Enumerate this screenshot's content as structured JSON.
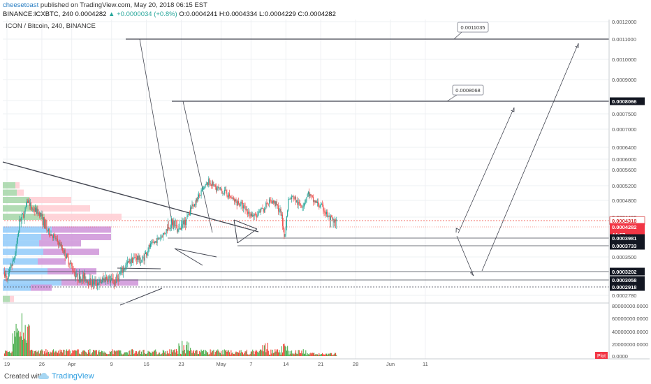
{
  "header": {
    "username": "cheesetoast",
    "published_text": "published on TradingView.com, May 20, 2018 06:15 EST",
    "ticker_line": "BINANCE:ICXBTC, 240",
    "price_last": "0.0004282",
    "change_arrow": "▲",
    "change_text": "+0.0000034 (+0.8%)",
    "ohlc": "O:0.0004241 H:0.0004334 L:0.0004229 C:0.0004282"
  },
  "chart_title": "ICON / Bitcoin, 240, BINANCE",
  "footer": {
    "created_with": "Created with",
    "brand": "TradingView"
  },
  "colors": {
    "bull": "#26a69a",
    "bear": "#ef5350",
    "volume_bull": "#4caf50",
    "volume_bear": "#f44336",
    "drawing": "#434651",
    "grid": "#eef0f3",
    "price_tag": "#f23645"
  },
  "chart_data": {
    "type": "candlestick",
    "symbol": "ICON / Bitcoin",
    "interval": "240",
    "exchange": "BINANCE",
    "x_tick_labels": [
      "19",
      "26",
      "Apr",
      "9",
      "16",
      "23",
      "May",
      "7",
      "14",
      "21",
      "28",
      "Jun",
      "11"
    ],
    "price_axis": {
      "tick_labels": [
        "0.0012000",
        "0.0011000",
        "0.0010000",
        "0.0009000",
        "0.0008000",
        "0.0007500",
        "0.0007000",
        "0.0006400",
        "0.0006000",
        "0.0005600",
        "0.0005200",
        "0.0004800",
        "0.0004400",
        "0.0003500",
        "0.0002780"
      ],
      "ylim": [
        0.00026,
        0.00122
      ],
      "highlighted_levels": [
        {
          "label": "0.0004318",
          "style": "dashed-red"
        },
        {
          "label": "0.0004282",
          "style": "last-price"
        },
        {
          "label": "44:57",
          "style": "countdown"
        },
        {
          "label": "0.0003981",
          "style": "level"
        },
        {
          "label": "0.0003733",
          "style": "level"
        },
        {
          "label": "0.0003202",
          "style": "level"
        },
        {
          "label": "0.0003058",
          "style": "level"
        },
        {
          "label": "0.0002918",
          "style": "level"
        },
        {
          "label": "0.0008066",
          "style": "level"
        }
      ]
    },
    "volume_axis": {
      "tick_labels": [
        "80000000.0000",
        "60000000.0000",
        "40000000.0000",
        "20000000.0000",
        "0.0000"
      ]
    },
    "annotations": [
      {
        "text": "0.0011035"
      },
      {
        "text": "0.0008068"
      }
    ],
    "indicators": [
      "Volume",
      "Volume Profile"
    ],
    "volume_badge": "Plot",
    "last_price": 0.0004282,
    "ohlc": {
      "open": 0.0004241,
      "high": 0.0004334,
      "low": 0.0004229,
      "close": 0.0004282
    },
    "candles": []
  }
}
